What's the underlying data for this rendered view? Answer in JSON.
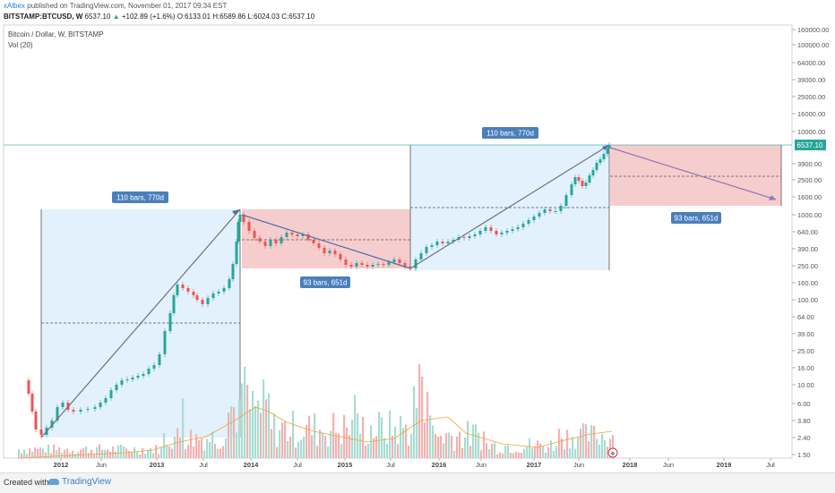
{
  "header": {
    "author": "xAlbex",
    "published_text": " published on TradingView.com, November 01, 2017 09:34 EST",
    "symbol": "BITSTAMP:BTCUSD, W",
    "last": "6537.10",
    "change": "+102.89 (+1.6%)",
    "o": "O:6133.01",
    "h": "H:6589.86",
    "l": "L:6024.03",
    "c": "C:6537.10"
  },
  "legend": {
    "title": "Bitcoin / Dollar, W, BITSTAMP",
    "volume": "Vol (20)"
  },
  "axis": {
    "price_ticks": [
      "160000.00",
      "100000.00",
      "64000.00",
      "39000.00",
      "25000.00",
      "16000.00",
      "10000.00",
      "6537.10",
      "3900.00",
      "2500.00",
      "1600.00",
      "1000.00",
      "640.00",
      "390.00",
      "250.00",
      "160.00",
      "100.00",
      "64.00",
      "39.00",
      "25.00",
      "16.00",
      "10.00",
      "6.00",
      "3.80",
      "2.40",
      "1.50"
    ],
    "time_ticks": [
      "2012",
      "Jun",
      "2013",
      "Jul",
      "2014",
      "Jul",
      "2015",
      "Jul",
      "2016",
      "Jun",
      "2017",
      "Jun",
      "2018",
      "Jun",
      "2019",
      "Jul"
    ]
  },
  "annotations": {
    "bars_770": "110 bars, 770d",
    "bars_651": "93 bars, 651d"
  },
  "footer": {
    "created_with": "Created with",
    "brand": "TradingView"
  },
  "colors": {
    "up": "#26a69a",
    "down": "#ef5350",
    "blue_zone": "#ddeefc",
    "red_zone": "#f5c4c4",
    "label_bg": "#4a7fbb",
    "ma_line": "#f4a13b"
  }
}
